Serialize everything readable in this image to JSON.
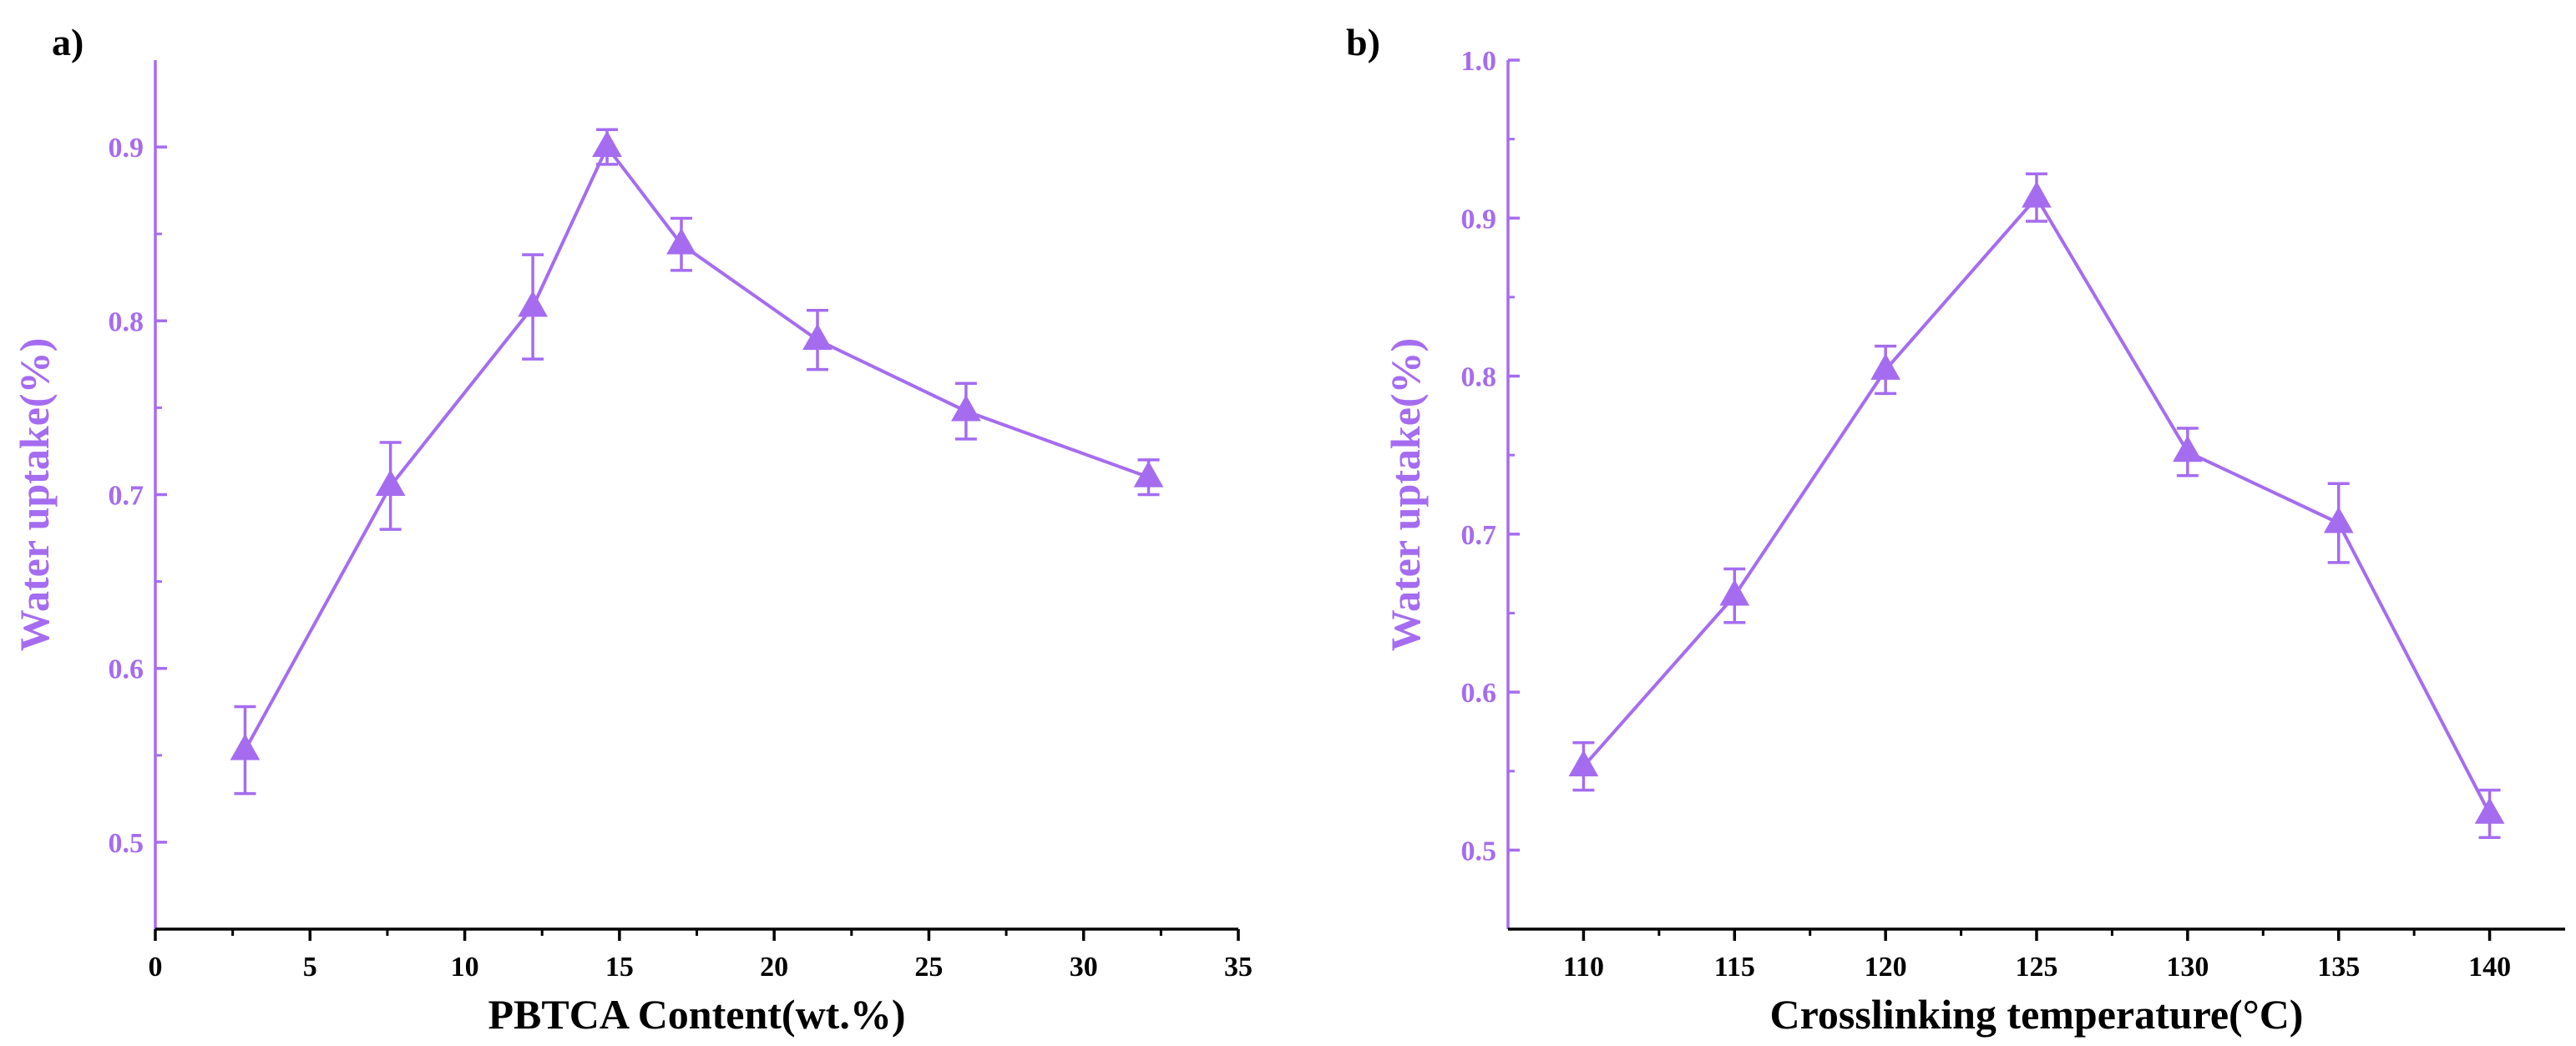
{
  "colors": {
    "accent": "#a56cf0",
    "axis": "#000000"
  },
  "chart_data": [
    {
      "type": "line",
      "panel_label": "a)",
      "xlabel": "PBTCA Content(wt.%)",
      "ylabel": "Water uptake(%)",
      "xlim": [
        0,
        35
      ],
      "ylim": [
        0.45,
        0.95
      ],
      "xticks": [
        0,
        5,
        10,
        15,
        20,
        25,
        30,
        35
      ],
      "xtick_labels": [
        "0",
        "5",
        "10",
        "15",
        "20",
        "25",
        "30",
        "35"
      ],
      "yticks": [
        0.5,
        0.6,
        0.7,
        0.8,
        0.9
      ],
      "ytick_labels": [
        "0.5",
        "0.6",
        "0.7",
        "0.8",
        "0.9"
      ],
      "series": [
        {
          "name": "Water uptake",
          "marker": "triangle",
          "x": [
            2.9,
            7.6,
            12.2,
            14.6,
            17.0,
            21.4,
            26.2,
            32.1
          ],
          "y": [
            0.553,
            0.705,
            0.808,
            0.9,
            0.844,
            0.789,
            0.748,
            0.71
          ],
          "yerr": [
            0.025,
            0.025,
            0.03,
            0.01,
            0.015,
            0.017,
            0.016,
            0.01
          ]
        }
      ]
    },
    {
      "type": "line",
      "panel_label": "b)",
      "xlabel": "Crosslinking temperature(°C)",
      "ylabel": "Water uptake(%)",
      "xlim": [
        107.5,
        142.5
      ],
      "ylim": [
        0.45,
        1.0
      ],
      "xticks": [
        110,
        115,
        120,
        125,
        130,
        135,
        140
      ],
      "xtick_labels": [
        "110",
        "115",
        "120",
        "125",
        "130",
        "135",
        "140"
      ],
      "yticks": [
        0.5,
        0.6,
        0.7,
        0.8,
        0.9,
        1.0
      ],
      "ytick_labels": [
        "0.5",
        "0.6",
        "0.7",
        "0.8",
        "0.9",
        "1.0"
      ],
      "series": [
        {
          "name": "Water uptake",
          "marker": "triangle",
          "x": [
            110,
            115,
            120,
            125,
            130,
            135,
            140
          ],
          "y": [
            0.553,
            0.661,
            0.804,
            0.913,
            0.752,
            0.707,
            0.523
          ],
          "yerr": [
            0.015,
            0.017,
            0.015,
            0.015,
            0.015,
            0.025,
            0.015
          ]
        }
      ]
    }
  ]
}
